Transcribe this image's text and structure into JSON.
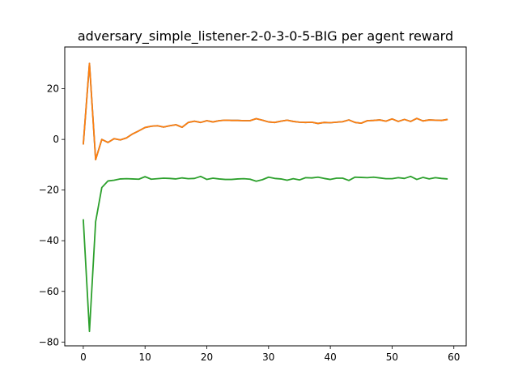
{
  "chart_data": {
    "type": "line",
    "title": "adversary_simple_listener-2-0-3-0-5-BIG per agent reward",
    "xlabel": "",
    "ylabel": "",
    "xlim": [
      -3,
      62
    ],
    "ylim": [
      -81.5,
      36.5
    ],
    "xticks": [
      0,
      10,
      20,
      30,
      40,
      50,
      60
    ],
    "yticks": [
      -80,
      -60,
      -40,
      -20,
      0,
      20
    ],
    "grid": false,
    "legend": "none",
    "x": [
      0,
      1,
      2,
      3,
      4,
      5,
      6,
      7,
      8,
      9,
      10,
      11,
      12,
      13,
      14,
      15,
      16,
      17,
      18,
      19,
      20,
      21,
      22,
      23,
      24,
      25,
      26,
      27,
      28,
      29,
      30,
      31,
      32,
      33,
      34,
      35,
      36,
      37,
      38,
      39,
      40,
      41,
      42,
      43,
      44,
      45,
      46,
      47,
      48,
      49,
      50,
      51,
      52,
      53,
      54,
      55,
      56,
      57,
      58,
      59
    ],
    "series": [
      {
        "color": "#1f77b4",
        "values": [
          -2.0,
          30.0,
          -8.0,
          0.0,
          -1.2,
          0.3,
          -0.2,
          0.6,
          2.2,
          3.4,
          4.7,
          5.2,
          5.4,
          4.9,
          5.4,
          5.8,
          4.8,
          6.7,
          7.2,
          6.7,
          7.4,
          6.9,
          7.4,
          7.6,
          7.5,
          7.5,
          7.4,
          7.4,
          8.2,
          7.6,
          6.9,
          6.7,
          7.2,
          7.6,
          7.1,
          6.8,
          6.7,
          6.8,
          6.3,
          6.7,
          6.6,
          6.8,
          7.0,
          7.7,
          6.7,
          6.4,
          7.4,
          7.5,
          7.7,
          7.2,
          8.1,
          7.1,
          7.9,
          7.1,
          8.3,
          7.3,
          7.7,
          7.6,
          7.5,
          7.9
        ]
      },
      {
        "color": "#ff7f0e",
        "values": [
          -2.0,
          30.0,
          -8.0,
          0.0,
          -1.2,
          0.3,
          -0.2,
          0.6,
          2.2,
          3.4,
          4.7,
          5.2,
          5.4,
          4.9,
          5.4,
          5.8,
          4.8,
          6.7,
          7.2,
          6.7,
          7.4,
          6.9,
          7.4,
          7.6,
          7.5,
          7.5,
          7.4,
          7.4,
          8.2,
          7.6,
          6.9,
          6.7,
          7.2,
          7.6,
          7.1,
          6.8,
          6.7,
          6.8,
          6.3,
          6.7,
          6.6,
          6.8,
          7.0,
          7.7,
          6.7,
          6.4,
          7.4,
          7.5,
          7.7,
          7.2,
          8.1,
          7.1,
          7.9,
          7.1,
          8.3,
          7.3,
          7.7,
          7.6,
          7.5,
          7.9
        ]
      },
      {
        "color": "#2ca02c",
        "values": [
          -31.5,
          -75.8,
          -32.5,
          -19.0,
          -16.4,
          -16.1,
          -15.6,
          -15.5,
          -15.6,
          -15.7,
          -14.7,
          -15.7,
          -15.5,
          -15.3,
          -15.4,
          -15.6,
          -15.2,
          -15.5,
          -15.4,
          -14.6,
          -15.8,
          -15.3,
          -15.6,
          -15.8,
          -15.8,
          -15.6,
          -15.5,
          -15.7,
          -16.5,
          -15.9,
          -14.9,
          -15.4,
          -15.6,
          -16.1,
          -15.5,
          -16.0,
          -15.1,
          -15.2,
          -14.9,
          -15.4,
          -15.8,
          -15.3,
          -15.3,
          -16.2,
          -14.9,
          -15.0,
          -15.1,
          -14.9,
          -15.2,
          -15.5,
          -15.5,
          -15.1,
          -15.4,
          -14.6,
          -15.8,
          -15.0,
          -15.6,
          -15.1,
          -15.4,
          -15.6
        ]
      }
    ]
  }
}
